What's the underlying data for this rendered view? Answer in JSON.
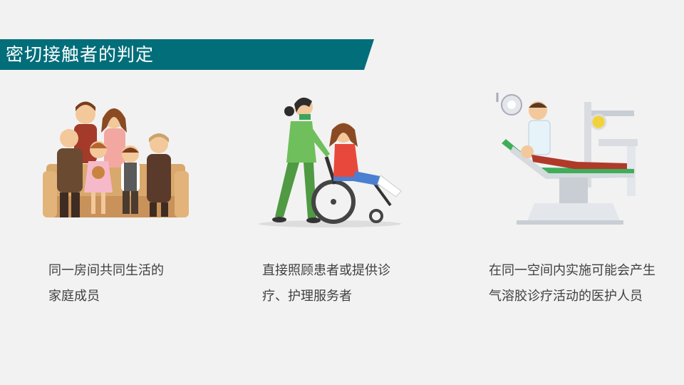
{
  "slide": {
    "title": "密切接触者的判定",
    "accent_color": "#026e7a",
    "cards": [
      {
        "icon": "family-illustration",
        "caption_lines": [
          "同一房间共同生活的",
          "家庭成员"
        ]
      },
      {
        "icon": "caregiver-wheelchair-illustration",
        "caption_lines": [
          "直接照顾患者或提供诊",
          "疗、护理服务者"
        ]
      },
      {
        "icon": "dental-procedure-illustration",
        "caption_lines": [
          "在同一空间内实施可能会产生",
          "气溶胶诊疗活动的医护人员"
        ]
      }
    ]
  }
}
